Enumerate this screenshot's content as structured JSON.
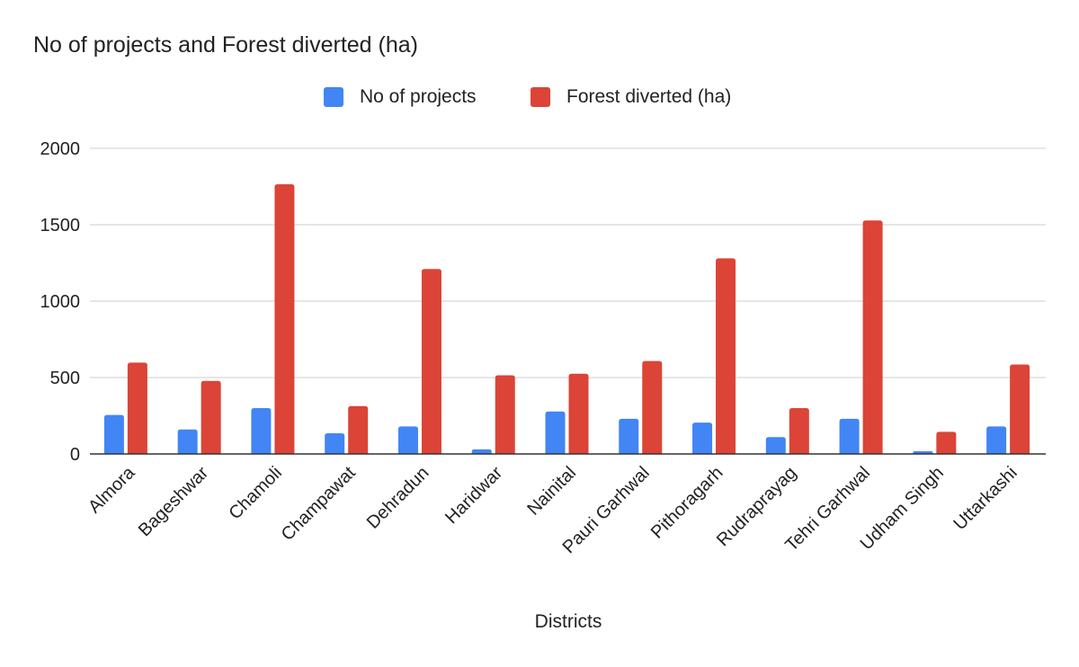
{
  "chart_data": {
    "type": "bar",
    "title": "No of projects and Forest diverted (ha)",
    "xlabel": "Districts",
    "ylabel": "",
    "ylim": [
      0,
      2000
    ],
    "yticks": [
      0,
      500,
      1000,
      1500,
      2000
    ],
    "grid": true,
    "legend_position": "top-center",
    "categories": [
      "Almora",
      "Bageshwar",
      "Chamoli",
      "Champawat",
      "Dehradun",
      "Haridwar",
      "Nainital",
      "Pauri Garhwal",
      "Pithoragarh",
      "Rudraprayag",
      "Tehri Garhwal",
      "Udham Singh",
      "Uttarkashi"
    ],
    "series": [
      {
        "name": "No of projects",
        "color": "#4285F4",
        "values": [
          255,
          160,
          300,
          135,
          180,
          30,
          278,
          230,
          205,
          110,
          230,
          18,
          180
        ]
      },
      {
        "name": "Forest diverted (ha)",
        "color": "#DB4437",
        "values": [
          598,
          478,
          1765,
          313,
          1210,
          515,
          525,
          608,
          1280,
          300,
          1528,
          145,
          585
        ]
      }
    ]
  }
}
